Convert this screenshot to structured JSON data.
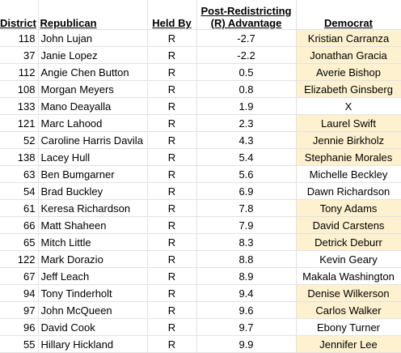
{
  "table": {
    "headers": [
      "District",
      "Republican",
      "Held By",
      "Post-Redistricting\n(R) Advantage",
      "Democrat"
    ],
    "rows": [
      [
        118,
        "John Lujan",
        "R",
        -2.7,
        "Kristian Carranza"
      ],
      [
        37,
        "Janie Lopez",
        "R",
        -2.2,
        "Jonathan Gracia"
      ],
      [
        112,
        "Angie Chen Button",
        "R",
        0.5,
        "Averie Bishop"
      ],
      [
        108,
        "Morgan Meyers",
        "R",
        0.8,
        "Elizabeth Ginsberg"
      ],
      [
        133,
        "Mano Deayalla",
        "R",
        1.9,
        "X"
      ],
      [
        121,
        "Marc Lahood",
        "R",
        2.3,
        "Laurel Swift"
      ],
      [
        52,
        "Caroline Harris Davila",
        "R",
        4.3,
        "Jennie Birkholz"
      ],
      [
        138,
        "Lacey Hull",
        "R",
        5.4,
        "Stephanie Morales"
      ],
      [
        63,
        "Ben Bumgarner",
        "R",
        5.6,
        "Michelle Beckley"
      ],
      [
        54,
        "Brad Buckley",
        "R",
        6.9,
        "Dawn Richardson"
      ],
      [
        61,
        "Keresa Richardson",
        "R",
        7.8,
        "Tony Adams"
      ],
      [
        66,
        "Matt Shaheen",
        "R",
        7.9,
        "David Carstens"
      ],
      [
        65,
        "Mitch Little",
        "R",
        8.3,
        "Detrick Deburr"
      ],
      [
        122,
        "Mark Dorazio",
        "R",
        8.8,
        "Kevin Geary"
      ],
      [
        67,
        "Jeff Leach",
        "R",
        8.9,
        "Makala Washington"
      ],
      [
        94,
        "Tony Tinderholt",
        "R",
        9.4,
        "Denise Wilkerson"
      ],
      [
        97,
        "John McQueen",
        "R",
        9.6,
        "Carlos Walker"
      ],
      [
        96,
        "David Cook",
        "R",
        9.7,
        "Ebony Turner"
      ],
      [
        55,
        "Hillary Hickland",
        "R",
        9.9,
        "Jennifer Lee"
      ]
    ],
    "democrat_fill": [
      "#fdf1cf",
      "#fdf1cf",
      "#fdf1cf",
      "#fdf1cf",
      null,
      "#fdf1cf",
      "#fdf1cf",
      "#fdf1cf",
      null,
      null,
      "#fdf1cf",
      "#fdf1cf",
      "#fdf1cf",
      null,
      null,
      "#fdf1cf",
      "#fdf1cf",
      null,
      "#fdf1cf"
    ]
  }
}
